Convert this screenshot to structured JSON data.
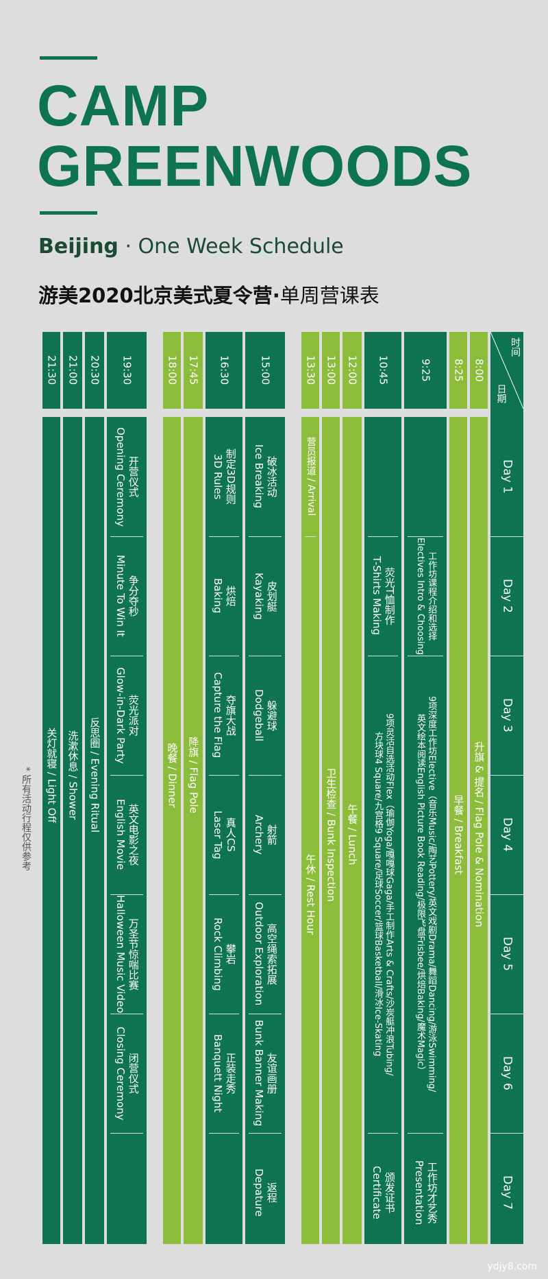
{
  "title": {
    "line1": "CAMP",
    "line2": "GREENWOODS"
  },
  "subtitle": {
    "city": "Beijing",
    "dot": "·",
    "rest": "One Week Schedule"
  },
  "cn_title": {
    "bold": "游美2020北京美式夏令营",
    "dot": "·",
    "rest": "单周营课表"
  },
  "header": {
    "time": "时间",
    "date": "日期"
  },
  "days": [
    "Day 1",
    "Day 2",
    "Day 3",
    "Day 4",
    "Day 5",
    "Day 6",
    "Day 7"
  ],
  "times": {
    "t0800": "8:00",
    "t0825": "8:25",
    "t0925": "9:25",
    "t1045": "10:45",
    "t1200": "12:00",
    "t1300": "13:00",
    "t1330": "13:30",
    "t1500": "15:00",
    "t1630": "16:30",
    "t1745": "17:45",
    "t1800": "18:00",
    "t1930": "19:30",
    "t2030": "20:30",
    "t2100": "21:00",
    "t2130": "21:30"
  },
  "schedule": {
    "flag": "升旗 & 提名 / Flag Pole & Nomination",
    "breakfast": "早餐 / Breakfast",
    "s925": {
      "d1": "",
      "d2a": "工作坊课程介绍和选择",
      "d2b": "Electives Intro & Choosing",
      "d3to6a": "9项深度工作坊Elective（音乐Music/陶艺Pottery/英文戏剧Drama/舞蹈Dancing/游泳Swimming/",
      "d3to6b": "英文绘本阅读English Picture Book Reading/极限飞盘Frisbee/烘焙Baking/魔术Magic）",
      "d7a": "工作坊才艺秀",
      "d7b": "Presentation"
    },
    "s1045": {
      "d2a": "荧光T恤制作",
      "d2b": "T-Shirts Making",
      "d3to6a": "9项灵活自选活动Flex（瑜伽Yoga/嘎嘎球Gaga/手工制作Arts & Crafts/沙炭艇冲浪Tubing/",
      "d3to6b": "方块球4 Square/九宫格9 Square/足球Soccer/篮球Basketball/滑冰Ice-Skating",
      "d7a": "颁发证书",
      "d7b": "Certificate"
    },
    "lunch": "午餐 / Lunch",
    "inspection": "卫生检查 / Bunk Inspection",
    "rest": "午休 / Rest Hour",
    "arrival": "营员报道 / Arrival",
    "s1500": [
      {
        "cn": "破冰活动",
        "en": "Ice Breaking"
      },
      {
        "cn": "皮划艇",
        "en": "Kayaking"
      },
      {
        "cn": "躲避球",
        "en": "Dodgeball"
      },
      {
        "cn": "射箭",
        "en": "Archery"
      },
      {
        "cn": "高空绳索拓展",
        "en": "Outdoor Exploration"
      },
      {
        "cn": "友谊画册",
        "en": "Bunk Banner Making"
      },
      {
        "cn": "返程",
        "en": "Depature"
      }
    ],
    "s1630": [
      {
        "cn": "制定3D规则",
        "en": "3D Rules"
      },
      {
        "cn": "烘焙",
        "en": "Baking"
      },
      {
        "cn": "夺旗大战",
        "en": "Capture the Flag"
      },
      {
        "cn": "真人CS",
        "en": "Laser Tag"
      },
      {
        "cn": "攀岩",
        "en": "Rock Climbing"
      },
      {
        "cn": "正装走秀",
        "en": "Banquett Night"
      }
    ],
    "flagdown": "降旗 / Flag Pole",
    "dinner": "晚餐 / Dinner",
    "s1930": [
      {
        "cn": "开营仪式",
        "en": "Opening Ceremony"
      },
      {
        "cn": "争分夺秒",
        "en": "Minute To Win It"
      },
      {
        "cn": "荧光派对",
        "en": "Glow-in-Dark Party"
      },
      {
        "cn": "英文电影之夜",
        "en": "English Movie"
      },
      {
        "cn": "万圣节惊喘比赛",
        "en": "Halloween Music Video"
      },
      {
        "cn": "闭营仪式",
        "en": "Closing Ceremony"
      }
    ],
    "ritual": "反思圈 / Evening Ritual",
    "shower": "洗漱休息 / Shower",
    "lightoff": "关灯就寝 / Light Off"
  },
  "note": "* 所有活动行程仅供参考",
  "watermark": "ydjy8.com",
  "colors": {
    "green": "#0e7350",
    "lime": "#8cbc3c",
    "bg": "#dddddd"
  }
}
